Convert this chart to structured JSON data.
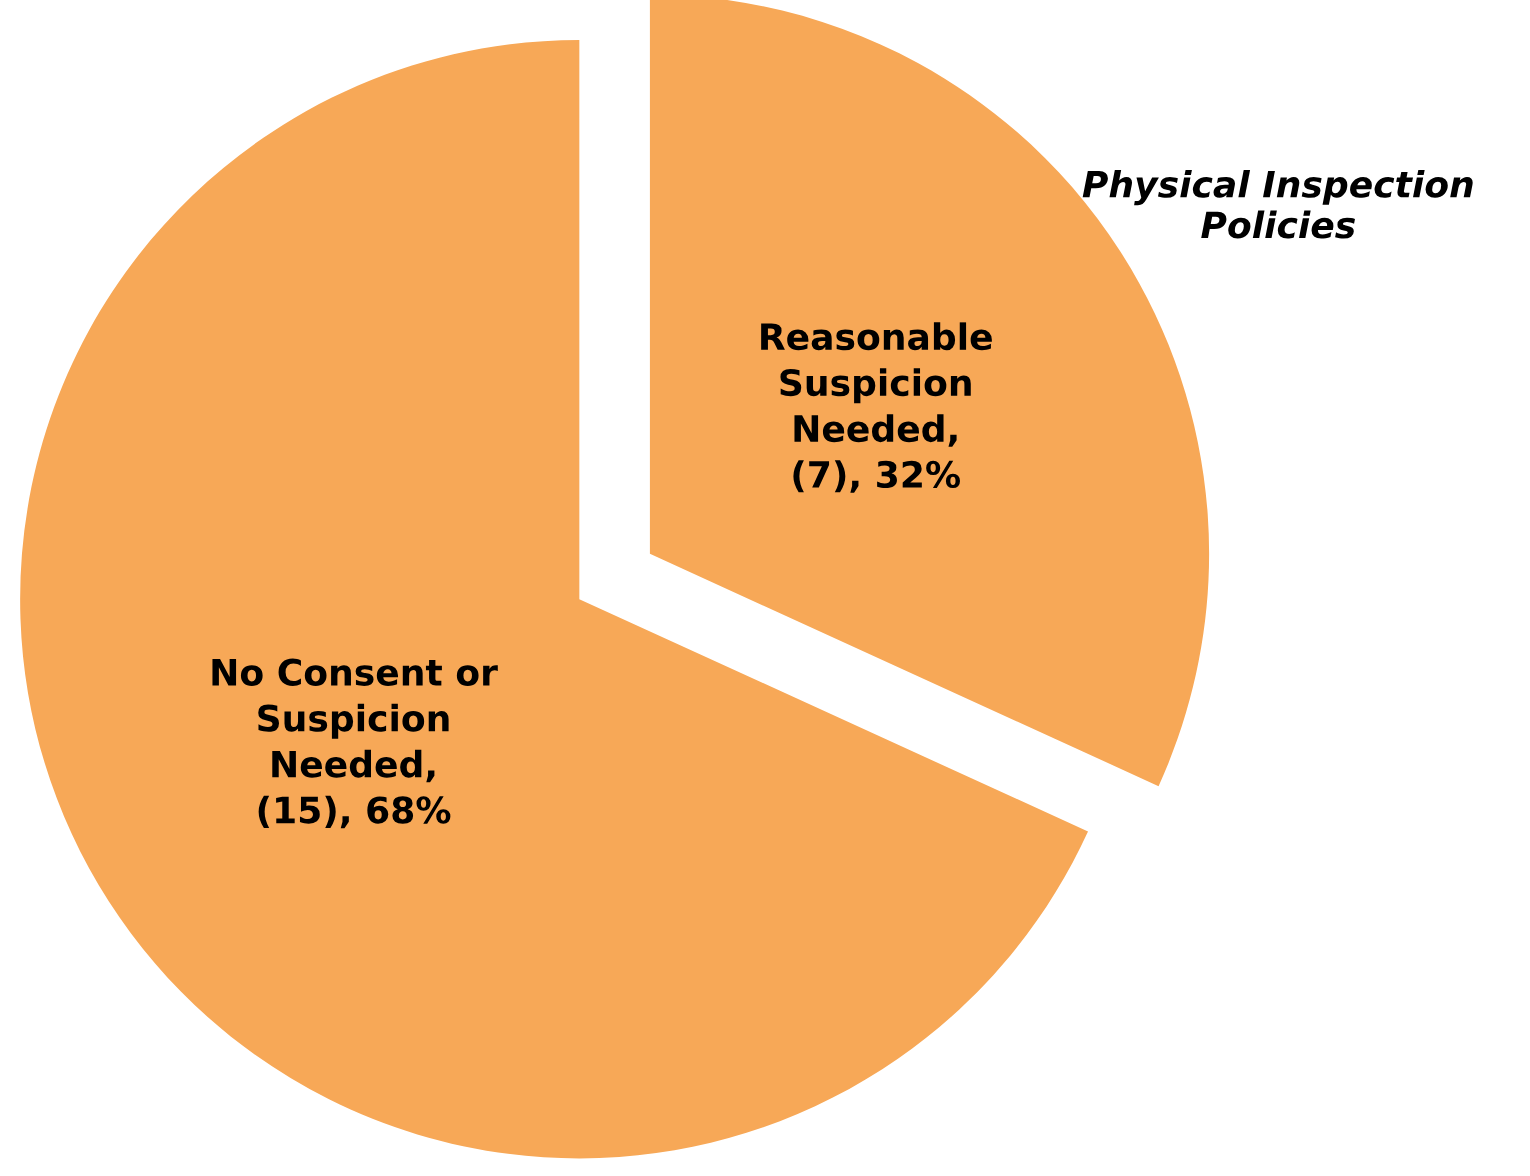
{
  "chart_data": {
    "type": "pie",
    "title": "Physical Inspection Policies",
    "categories": [
      "Reasonable Suspicion Needed",
      "No Consent or Suspicion Needed"
    ],
    "values": [
      7,
      15
    ],
    "value_labels": [
      ", (7), 32%",
      ", (15), 68%"
    ],
    "colors": [
      "#f7a857",
      "#f7a857"
    ],
    "legend": false
  }
}
